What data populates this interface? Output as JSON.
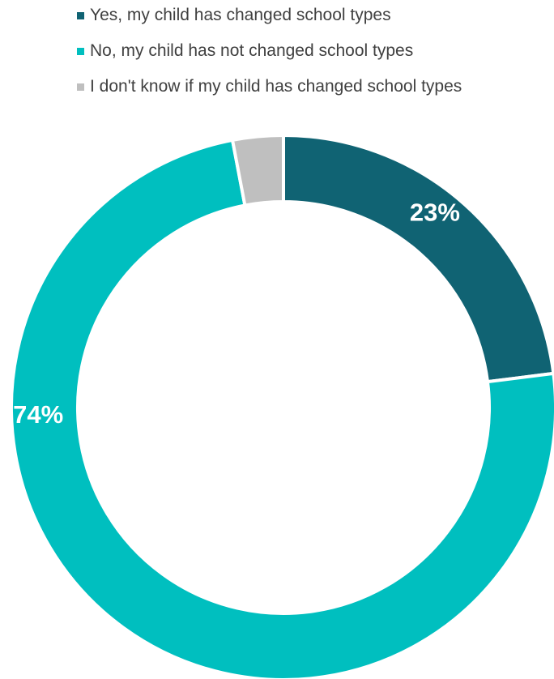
{
  "chart_data": {
    "type": "pie",
    "variant": "donut",
    "title": "",
    "categories": [
      "Yes, my child has changed school types",
      "No, my child has not changed school types",
      "I don't know if my child has changed school types"
    ],
    "values": [
      23,
      74,
      3
    ],
    "value_unit": "%",
    "data_labels": [
      "23%",
      "74%",
      ""
    ],
    "colors": [
      "#106373",
      "#00BFBF",
      "#BFBFBF"
    ],
    "legend_position": "top",
    "start_angle": "12 o'clock, clockwise"
  }
}
